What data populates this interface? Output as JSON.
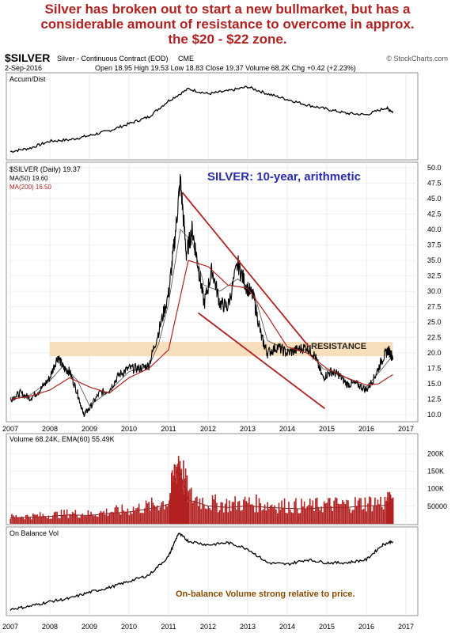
{
  "headline": {
    "line1": "Silver has broken out to start a new bullmarket, but has a",
    "line2": "considerable amount of resistance to overcome in approx.",
    "line3": "the $20 - $22 zone."
  },
  "header": {
    "symbol": "$SILVER",
    "description": "Silver - Continuous Contract (EOD)",
    "exchange": "CME",
    "watermark": "© StockCharts.com",
    "date": "2-Sep-2016",
    "quote": "Open 18.95  High 19.53  Low 18.83  Close 19.37  Volume 68.2K  Chg +0.42 (+2.23%)"
  },
  "colors": {
    "price": "#000000",
    "ma50": "#000000",
    "ma200": "#b22121",
    "channel": "#b22121",
    "resistance_zone": "#f7d9b0",
    "headline": "#b22121",
    "annotation_blue": "#2b2bb0",
    "annotation_brown": "#8a4a00",
    "volume_bars": "#b22121"
  },
  "chart_data": [
    {
      "type": "line",
      "panel": "accum-dist",
      "title": "Accum/Dist",
      "x": [
        2007.0,
        2007.5,
        2008.0,
        2008.5,
        2009.0,
        2009.5,
        2010.0,
        2010.5,
        2011.0,
        2011.5,
        2012.0,
        2012.5,
        2013.0,
        2013.5,
        2014.0,
        2014.5,
        2015.0,
        2015.5,
        2016.0,
        2016.5,
        2016.67
      ],
      "values": [
        0.05,
        0.1,
        0.2,
        0.22,
        0.28,
        0.35,
        0.45,
        0.55,
        0.78,
        0.95,
        0.88,
        0.92,
        0.98,
        0.88,
        0.8,
        0.72,
        0.66,
        0.6,
        0.58,
        0.68,
        0.62
      ]
    },
    {
      "type": "line",
      "panel": "price",
      "legend": [
        "$SILVER (Daily) 19.37",
        "MA(50) 19.60",
        "MA(200) 16.50"
      ],
      "annotation": "SILVER: 10-year, arithmetic",
      "resistance_label": "RESISTANCE",
      "ylim": [
        9,
        50
      ],
      "yticks": [
        "50.0",
        "47.5",
        "45.0",
        "42.5",
        "40.0",
        "37.5",
        "35.0",
        "32.5",
        "30.0",
        "27.5",
        "25.0",
        "22.5",
        "20.0",
        "17.5",
        "15.0",
        "12.5",
        "10.0"
      ],
      "resistance_zone": [
        19.5,
        21.8
      ],
      "series": [
        {
          "name": "$SILVER",
          "x": [
            2007.0,
            2007.25,
            2007.5,
            2007.75,
            2008.0,
            2008.2,
            2008.35,
            2008.5,
            2008.7,
            2008.85,
            2009.0,
            2009.25,
            2009.5,
            2009.75,
            2010.0,
            2010.25,
            2010.5,
            2010.75,
            2011.0,
            2011.15,
            2011.3,
            2011.45,
            2011.6,
            2011.75,
            2011.9,
            2012.1,
            2012.3,
            2012.5,
            2012.75,
            2012.95,
            2013.15,
            2013.35,
            2013.5,
            2013.75,
            2014.0,
            2014.25,
            2014.5,
            2014.7,
            2014.9,
            2015.1,
            2015.3,
            2015.5,
            2015.75,
            2016.0,
            2016.2,
            2016.4,
            2016.55,
            2016.67
          ],
          "values": [
            12.5,
            13.5,
            12.7,
            14.0,
            16.0,
            19.5,
            17.5,
            17.0,
            13.5,
            10.0,
            11.0,
            13.5,
            14.0,
            16.5,
            17.5,
            17.5,
            18.0,
            23.5,
            29.5,
            38.0,
            48.0,
            36.0,
            40.0,
            34.0,
            28.0,
            33.5,
            28.0,
            27.5,
            34.5,
            31.0,
            29.0,
            22.5,
            20.0,
            21.0,
            20.0,
            20.5,
            21.0,
            19.5,
            16.0,
            17.0,
            16.5,
            15.0,
            15.0,
            14.0,
            16.0,
            19.0,
            20.5,
            19.37
          ]
        },
        {
          "name": "MA(50)",
          "x": [
            2007.0,
            2007.5,
            2008.0,
            2008.35,
            2008.7,
            2009.0,
            2009.5,
            2010.0,
            2010.5,
            2010.75,
            2011.0,
            2011.3,
            2011.6,
            2011.9,
            2012.3,
            2012.75,
            2013.15,
            2013.5,
            2014.0,
            2014.5,
            2014.9,
            2015.3,
            2015.75,
            2016.0,
            2016.4,
            2016.67
          ],
          "values": [
            12.8,
            13.2,
            15.5,
            18.0,
            15.5,
            11.5,
            13.8,
            17.0,
            17.8,
            21.5,
            28.0,
            40.0,
            38.0,
            31.0,
            30.0,
            32.0,
            30.0,
            22.0,
            20.5,
            20.5,
            17.5,
            16.5,
            15.2,
            14.5,
            17.5,
            19.6
          ]
        },
        {
          "name": "MA(200)",
          "x": [
            2007.0,
            2007.5,
            2008.0,
            2008.5,
            2009.0,
            2009.5,
            2010.0,
            2010.5,
            2011.0,
            2011.5,
            2012.0,
            2012.5,
            2013.0,
            2013.5,
            2014.0,
            2014.5,
            2015.0,
            2015.5,
            2016.0,
            2016.3,
            2016.67
          ],
          "values": [
            12.5,
            13.0,
            14.0,
            16.0,
            14.5,
            13.5,
            16.0,
            17.5,
            20.5,
            35.0,
            34.0,
            31.0,
            30.5,
            26.0,
            21.0,
            20.0,
            17.5,
            16.0,
            14.8,
            15.0,
            16.5
          ]
        },
        {
          "name": "channel-upper",
          "x": [
            2011.35,
            2014.55
          ],
          "values": [
            46.0,
            21.0
          ]
        },
        {
          "name": "channel-lower",
          "x": [
            2011.75,
            2014.95
          ],
          "values": [
            26.5,
            11.0
          ]
        }
      ]
    },
    {
      "type": "bar",
      "panel": "volume",
      "legend": "Volume 68.24K, EMA(60) 55.49K",
      "yticks": [
        "200K",
        "150K",
        "100K",
        "50000"
      ],
      "x": [
        2007.0,
        2007.5,
        2008.0,
        2008.5,
        2009.0,
        2009.5,
        2010.0,
        2010.5,
        2011.0,
        2011.25,
        2011.5,
        2012.0,
        2012.5,
        2013.0,
        2013.5,
        2014.0,
        2014.5,
        2015.0,
        2015.5,
        2016.0,
        2016.5,
        2016.67
      ],
      "values": [
        20000,
        22000,
        25000,
        30000,
        28000,
        35000,
        40000,
        50000,
        65000,
        190000,
        80000,
        60000,
        55000,
        60000,
        55000,
        52000,
        50000,
        55000,
        55000,
        60000,
        62000,
        68240
      ]
    },
    {
      "type": "line",
      "panel": "on-balance-volume",
      "title": "On Balance Vol",
      "annotation": "On-balance Volume strong relative to price.",
      "x": [
        2007.0,
        2007.5,
        2008.0,
        2008.5,
        2009.0,
        2009.5,
        2010.0,
        2010.5,
        2011.0,
        2011.25,
        2011.5,
        2012.0,
        2012.5,
        2013.0,
        2013.5,
        2014.0,
        2014.5,
        2015.0,
        2015.5,
        2016.0,
        2016.4,
        2016.67
      ],
      "values": [
        0.02,
        0.06,
        0.12,
        0.16,
        0.24,
        0.3,
        0.38,
        0.46,
        0.7,
        1.0,
        0.9,
        0.85,
        0.88,
        0.8,
        0.62,
        0.6,
        0.66,
        0.62,
        0.62,
        0.66,
        0.85,
        0.9
      ]
    }
  ],
  "x_axis": {
    "range": [
      2006.9,
      2017.3
    ],
    "labels": [
      "2007",
      "2008",
      "2009",
      "2010",
      "2011",
      "2012",
      "2013",
      "2014",
      "2015",
      "2016",
      "2017"
    ]
  }
}
